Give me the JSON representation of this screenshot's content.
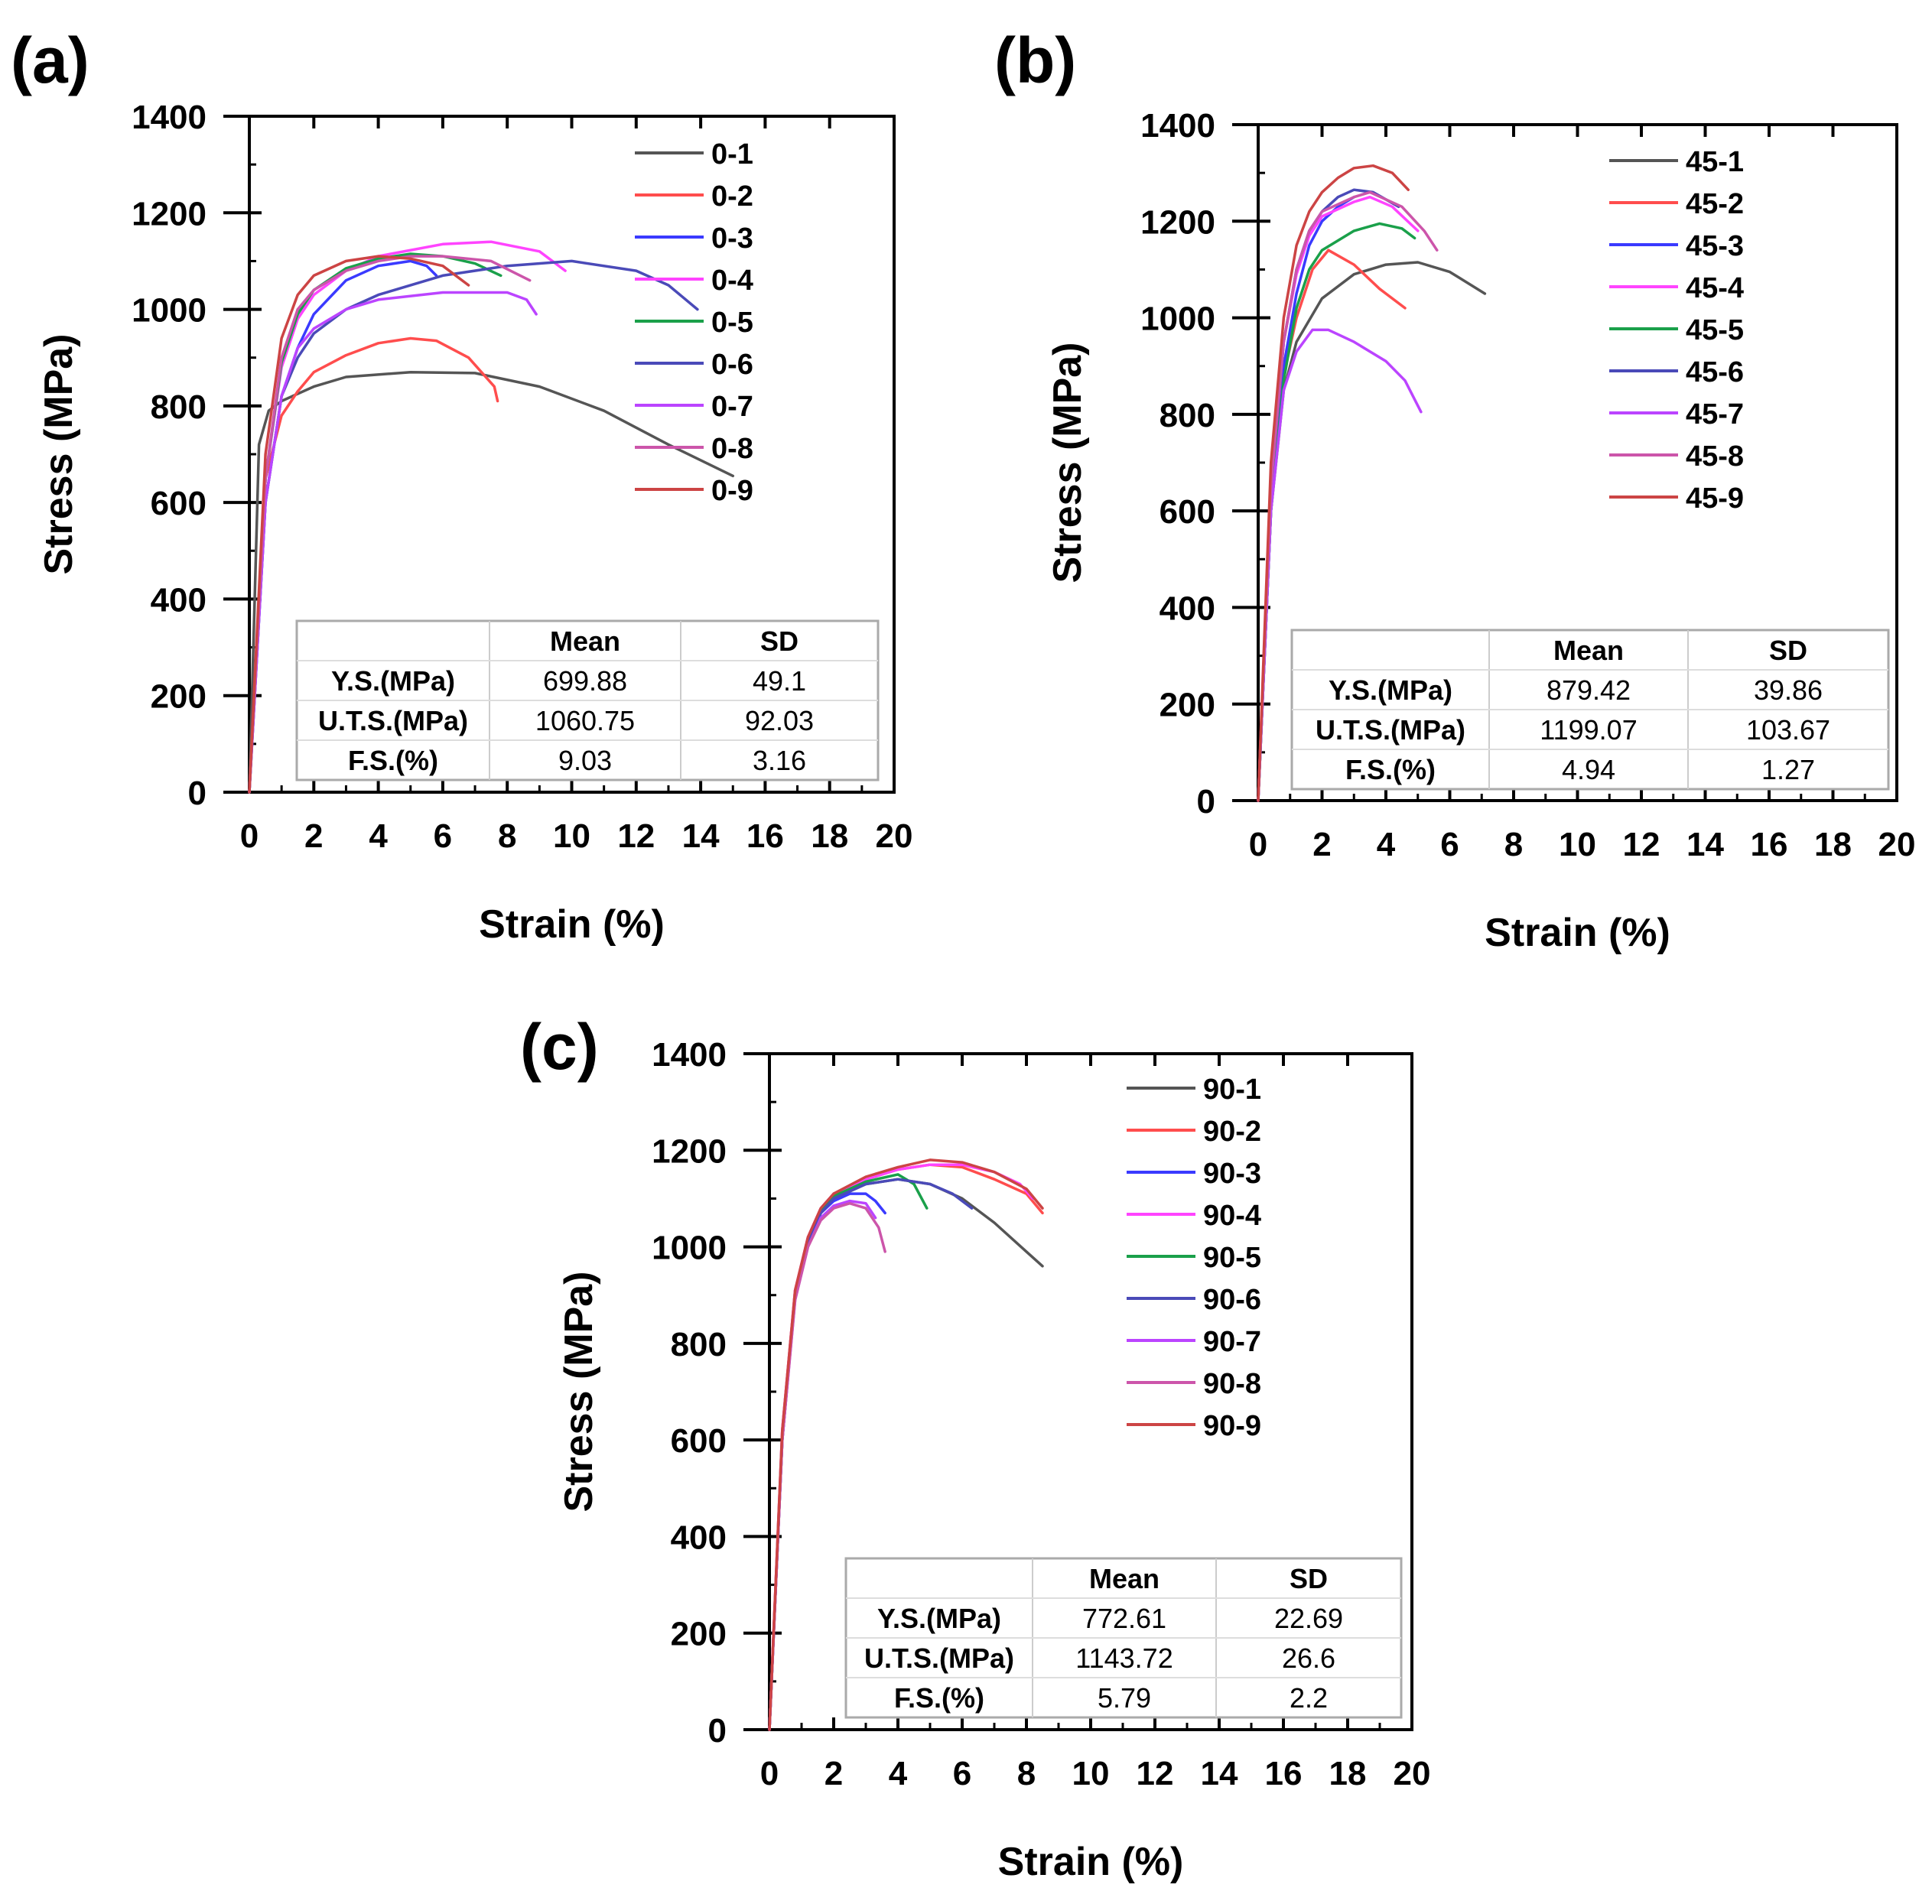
{
  "chart_data": [
    {
      "type": "line",
      "panel_label": "(a)",
      "xlabel": "Strain (%)",
      "ylabel": "Stress (MPa)",
      "xlim": [
        0,
        20
      ],
      "ylim": [
        0,
        1400
      ],
      "xticks": [
        0,
        2,
        4,
        6,
        8,
        10,
        12,
        14,
        16,
        18,
        20
      ],
      "yticks": [
        0,
        200,
        400,
        600,
        800,
        1000,
        1200,
        1400
      ],
      "legend_position": "top-right",
      "series": [
        {
          "name": "0-1",
          "color": "#555555",
          "x": [
            0,
            0.3,
            0.6,
            1,
            2,
            3,
            5,
            7,
            9,
            11,
            13,
            15
          ],
          "y": [
            0,
            720,
            790,
            810,
            840,
            860,
            870,
            868,
            840,
            790,
            720,
            655
          ]
        },
        {
          "name": "0-2",
          "color": "#ff4d4d",
          "x": [
            0,
            0.5,
            1,
            1.5,
            2,
            3,
            4,
            5,
            5.8,
            6.8,
            7.6,
            7.7
          ],
          "y": [
            0,
            650,
            780,
            830,
            870,
            905,
            930,
            940,
            935,
            900,
            840,
            810
          ]
        },
        {
          "name": "0-3",
          "color": "#3a3aff",
          "x": [
            0,
            0.5,
            1,
            1.5,
            2,
            3,
            4,
            5,
            5.5,
            5.8
          ],
          "y": [
            0,
            600,
            820,
            920,
            990,
            1060,
            1090,
            1100,
            1090,
            1070
          ]
        },
        {
          "name": "0-4",
          "color": "#ff44ff",
          "x": [
            0,
            0.5,
            1,
            1.5,
            2,
            3,
            4,
            6,
            7.5,
            9,
            9.8
          ],
          "y": [
            0,
            650,
            880,
            980,
            1030,
            1080,
            1110,
            1135,
            1140,
            1120,
            1080
          ]
        },
        {
          "name": "0-5",
          "color": "#1aa04a",
          "x": [
            0,
            0.5,
            1,
            1.5,
            2,
            3,
            4,
            5,
            6,
            7,
            7.8
          ],
          "y": [
            0,
            650,
            890,
            990,
            1040,
            1085,
            1105,
            1115,
            1110,
            1095,
            1070
          ]
        },
        {
          "name": "0-6",
          "color": "#4a4ab8",
          "x": [
            0,
            0.5,
            1,
            1.5,
            2,
            3,
            4,
            6,
            8,
            10,
            12,
            13,
            13.9
          ],
          "y": [
            0,
            600,
            820,
            900,
            950,
            1000,
            1030,
            1070,
            1090,
            1100,
            1080,
            1050,
            1000
          ]
        },
        {
          "name": "0-7",
          "color": "#bb44ff",
          "x": [
            0,
            0.5,
            1,
            1.5,
            2,
            3,
            4,
            6,
            8,
            8.6,
            8.9
          ],
          "y": [
            0,
            600,
            820,
            920,
            960,
            1000,
            1020,
            1035,
            1035,
            1020,
            990
          ]
        },
        {
          "name": "0-8",
          "color": "#cc55aa",
          "x": [
            0,
            0.5,
            1,
            1.5,
            2,
            3,
            4,
            5,
            6,
            7.5,
            8.7
          ],
          "y": [
            0,
            650,
            900,
            1000,
            1040,
            1080,
            1100,
            1110,
            1110,
            1100,
            1060
          ]
        },
        {
          "name": "0-9",
          "color": "#cc4444",
          "x": [
            0,
            0.5,
            1,
            1.5,
            2,
            3,
            4,
            5,
            6,
            6.8
          ],
          "y": [
            0,
            700,
            940,
            1030,
            1070,
            1100,
            1110,
            1105,
            1090,
            1050
          ]
        }
      ],
      "table": {
        "headers": [
          "",
          "Mean",
          "SD"
        ],
        "rows": [
          [
            "Y.S.(MPa)",
            "699.88",
            "49.1"
          ],
          [
            "U.T.S.(MPa)",
            "1060.75",
            "92.03"
          ],
          [
            "F.S.(%)",
            "9.03",
            "3.16"
          ]
        ]
      }
    },
    {
      "type": "line",
      "panel_label": "(b)",
      "xlabel": "Strain (%)",
      "ylabel": "Stress (MPa)",
      "xlim": [
        0,
        20
      ],
      "ylim": [
        0,
        1400
      ],
      "xticks": [
        0,
        2,
        4,
        6,
        8,
        10,
        12,
        14,
        16,
        18,
        20
      ],
      "yticks": [
        0,
        200,
        400,
        600,
        800,
        1000,
        1200,
        1400
      ],
      "legend_position": "top-right",
      "series": [
        {
          "name": "45-1",
          "color": "#555555",
          "x": [
            0,
            0.4,
            0.8,
            1.2,
            2,
            3,
            4,
            5,
            6,
            7.1
          ],
          "y": [
            0,
            600,
            850,
            950,
            1040,
            1090,
            1110,
            1115,
            1095,
            1050
          ]
        },
        {
          "name": "45-2",
          "color": "#ff4d4d",
          "x": [
            0,
            0.4,
            0.8,
            1.2,
            1.7,
            2.2,
            3,
            3.8,
            4.6
          ],
          "y": [
            0,
            600,
            880,
            1000,
            1100,
            1140,
            1110,
            1060,
            1020
          ]
        },
        {
          "name": "45-3",
          "color": "#3a3aff",
          "x": [
            0,
            0.4,
            0.8,
            1.2,
            1.6,
            2,
            2.5,
            3
          ],
          "y": [
            0,
            600,
            900,
            1050,
            1150,
            1200,
            1230,
            1250
          ]
        },
        {
          "name": "45-4",
          "color": "#ff44ff",
          "x": [
            0,
            0.4,
            0.8,
            1.2,
            1.6,
            2,
            3,
            3.5,
            4.2,
            5
          ],
          "y": [
            0,
            650,
            950,
            1090,
            1170,
            1210,
            1240,
            1250,
            1230,
            1180
          ]
        },
        {
          "name": "45-5",
          "color": "#1aa04a",
          "x": [
            0,
            0.4,
            0.8,
            1.2,
            1.6,
            2,
            3,
            3.8,
            4.5,
            4.9
          ],
          "y": [
            0,
            600,
            870,
            1020,
            1100,
            1140,
            1180,
            1195,
            1185,
            1165
          ]
        },
        {
          "name": "45-6",
          "color": "#4a4ab8",
          "x": [
            0,
            0.4,
            0.8,
            1.2,
            1.6,
            2,
            2.5,
            3,
            3.6,
            4.4
          ],
          "y": [
            0,
            650,
            950,
            1100,
            1180,
            1220,
            1250,
            1265,
            1260,
            1230
          ]
        },
        {
          "name": "45-7",
          "color": "#bb44ff",
          "x": [
            0,
            0.4,
            0.8,
            1.2,
            1.7,
            2.2,
            3,
            4,
            4.6,
            5.1
          ],
          "y": [
            0,
            600,
            850,
            930,
            975,
            975,
            950,
            910,
            870,
            805
          ]
        },
        {
          "name": "45-8",
          "color": "#cc55aa",
          "x": [
            0,
            0.4,
            0.8,
            1.2,
            1.6,
            2,
            3,
            3.5,
            4.5,
            5.2,
            5.6
          ],
          "y": [
            0,
            650,
            950,
            1100,
            1180,
            1220,
            1250,
            1260,
            1230,
            1180,
            1140
          ]
        },
        {
          "name": "45-9",
          "color": "#cc4444",
          "x": [
            0,
            0.4,
            0.8,
            1.2,
            1.6,
            2,
            2.5,
            3,
            3.6,
            4.2,
            4.7
          ],
          "y": [
            0,
            700,
            1000,
            1150,
            1220,
            1260,
            1290,
            1310,
            1315,
            1300,
            1265
          ]
        }
      ],
      "table": {
        "headers": [
          "",
          "Mean",
          "SD"
        ],
        "rows": [
          [
            "Y.S.(MPa)",
            "879.42",
            "39.86"
          ],
          [
            "U.T.S.(MPa)",
            "1199.07",
            "103.67"
          ],
          [
            "F.S.(%)",
            "4.94",
            "1.27"
          ]
        ]
      }
    },
    {
      "type": "line",
      "panel_label": "(c)",
      "xlabel": "Strain (%)",
      "ylabel": "Stress (MPa)",
      "xlim": [
        0,
        20
      ],
      "ylim": [
        0,
        1400
      ],
      "xticks": [
        0,
        2,
        4,
        6,
        8,
        10,
        12,
        14,
        16,
        18,
        20
      ],
      "yticks": [
        0,
        200,
        400,
        600,
        800,
        1000,
        1200,
        1400
      ],
      "legend_position": "top-right",
      "series": [
        {
          "name": "90-1",
          "color": "#555555",
          "x": [
            0,
            0.4,
            0.8,
            1.2,
            1.6,
            2,
            3,
            4,
            5,
            6,
            7,
            8,
            8.5
          ],
          "y": [
            0,
            600,
            900,
            1010,
            1070,
            1100,
            1130,
            1140,
            1130,
            1100,
            1050,
            990,
            960
          ]
        },
        {
          "name": "90-2",
          "color": "#ff4d4d",
          "x": [
            0,
            0.4,
            0.8,
            1.2,
            1.6,
            2,
            3,
            4,
            5,
            6,
            7,
            8,
            8.5
          ],
          "y": [
            0,
            620,
            910,
            1020,
            1080,
            1110,
            1140,
            1160,
            1170,
            1165,
            1140,
            1110,
            1070
          ]
        },
        {
          "name": "90-3",
          "color": "#3a3aff",
          "x": [
            0,
            0.4,
            0.8,
            1.2,
            1.6,
            2,
            2.5,
            3,
            3.3,
            3.6
          ],
          "y": [
            0,
            600,
            900,
            1010,
            1070,
            1095,
            1110,
            1110,
            1095,
            1070
          ]
        },
        {
          "name": "90-4",
          "color": "#ff44ff",
          "x": [
            0,
            0.4,
            0.8,
            1.2,
            1.6,
            2,
            3,
            4,
            5,
            6,
            7,
            7.8,
            8.2
          ],
          "y": [
            0,
            620,
            910,
            1020,
            1080,
            1110,
            1140,
            1160,
            1170,
            1170,
            1155,
            1130,
            1100
          ]
        },
        {
          "name": "90-5",
          "color": "#1aa04a",
          "x": [
            0,
            0.4,
            0.8,
            1.2,
            1.6,
            2,
            3,
            4,
            4.5,
            4.9
          ],
          "y": [
            0,
            610,
            900,
            1015,
            1075,
            1105,
            1135,
            1150,
            1130,
            1080
          ]
        },
        {
          "name": "90-6",
          "color": "#4a4ab8",
          "x": [
            0,
            0.4,
            0.8,
            1.2,
            1.6,
            2,
            3,
            4,
            5,
            5.7,
            6.3
          ],
          "y": [
            0,
            600,
            900,
            1010,
            1070,
            1100,
            1130,
            1140,
            1130,
            1110,
            1080
          ]
        },
        {
          "name": "90-7",
          "color": "#bb44ff",
          "x": [
            0,
            0.4,
            0.8,
            1.2,
            1.6,
            2,
            2.5,
            3,
            3.3
          ],
          "y": [
            0,
            600,
            890,
            1000,
            1060,
            1085,
            1095,
            1090,
            1060
          ]
        },
        {
          "name": "90-8",
          "color": "#cc55aa",
          "x": [
            0,
            0.4,
            0.8,
            1.2,
            1.6,
            2,
            2.5,
            3,
            3.4,
            3.6
          ],
          "y": [
            0,
            600,
            890,
            1000,
            1055,
            1080,
            1090,
            1080,
            1040,
            990
          ]
        },
        {
          "name": "90-9",
          "color": "#cc4444",
          "x": [
            0,
            0.4,
            0.8,
            1.2,
            1.6,
            2,
            3,
            4,
            5,
            6,
            7,
            8,
            8.5
          ],
          "y": [
            0,
            620,
            910,
            1020,
            1080,
            1110,
            1145,
            1165,
            1180,
            1175,
            1155,
            1120,
            1080
          ]
        }
      ],
      "table": {
        "headers": [
          "",
          "Mean",
          "SD"
        ],
        "rows": [
          [
            "Y.S.(MPa)",
            "772.61",
            "22.69"
          ],
          [
            "U.T.S.(MPa)",
            "1143.72",
            "26.6"
          ],
          [
            "F.S.(%)",
            "5.79",
            "2.2"
          ]
        ]
      }
    }
  ]
}
